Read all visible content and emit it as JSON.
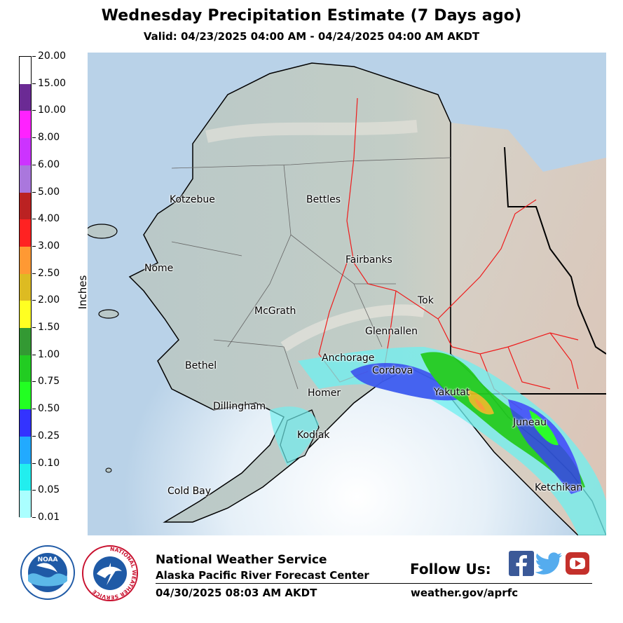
{
  "header": {
    "title": "Wednesday Precipitation Estimate (7 Days ago)",
    "subtitle": "Valid: 04/23/2025 04:00 AM - 04/24/2025 04:00 AM AKDT"
  },
  "legend": {
    "unit": "Inches",
    "labels": [
      "20.00",
      "15.00",
      "10.00",
      "8.00",
      "6.00",
      "5.00",
      "4.00",
      "3.00",
      "2.50",
      "2.00",
      "1.50",
      "1.00",
      "0.75",
      "0.50",
      "0.25",
      "0.10",
      "0.05",
      "0.01"
    ],
    "colors": [
      "#ffffff",
      "#6b2a94",
      "#ff22ff",
      "#cc33ff",
      "#aa77dd",
      "#bb2222",
      "#ff2222",
      "#ff9933",
      "#ddbb22",
      "#ffff22",
      "#339933",
      "#22cc22",
      "#22ff22",
      "#3333ff",
      "#22aaff",
      "#22eeee",
      "#aaffff"
    ]
  },
  "map": {
    "cities": [
      "Kotzebue",
      "Bettles",
      "Nome",
      "Fairbanks",
      "McGrath",
      "Tok",
      "Glennallen",
      "Anchorage",
      "Cordova",
      "Bethel",
      "Homer",
      "Yakutat",
      "Dillingham",
      "Juneau",
      "Kodiak",
      "Cold Bay",
      "Ketchikan"
    ]
  },
  "footer": {
    "org_name": "National Weather Service",
    "org_unit": "Alaska Pacific River Forecast Center",
    "timestamp": "04/30/2025 08:03 AM AKDT",
    "follow_label": "Follow Us:",
    "website": "weather.gov/aprfc"
  },
  "logos": {
    "noaa_text": "NOAA",
    "nws_ring_text": "NATIONAL WEATHER SERVICE"
  },
  "icons": [
    "facebook-icon",
    "twitter-icon",
    "youtube-icon"
  ]
}
